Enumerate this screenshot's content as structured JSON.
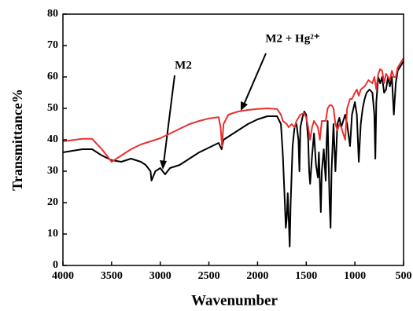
{
  "chart_data": {
    "type": "line",
    "x_label": "Wavenumber",
    "y_label": "Transmittance%",
    "xlim": [
      4000,
      500
    ],
    "ylim": [
      0,
      80
    ],
    "xticks": [
      4000,
      3500,
      3000,
      2500,
      2000,
      1500,
      1000,
      500
    ],
    "yticks": [
      0,
      10,
      20,
      30,
      40,
      50,
      60,
      70,
      80
    ],
    "annotations": [
      {
        "text": "M2"
      },
      {
        "text": "M2 + Hg²⁺"
      }
    ],
    "series": [
      {
        "name": "M2",
        "color": "#000000",
        "x": [
          4000,
          3800,
          3700,
          3600,
          3500,
          3400,
          3300,
          3200,
          3150,
          3100,
          3090,
          3050,
          3000,
          2950,
          2900,
          2800,
          2700,
          2600,
          2500,
          2400,
          2370,
          2350,
          2300,
          2200,
          2100,
          2000,
          1900,
          1800,
          1760,
          1740,
          1720,
          1710,
          1700,
          1690,
          1680,
          1670,
          1660,
          1640,
          1620,
          1600,
          1580,
          1570,
          1560,
          1540,
          1520,
          1500,
          1480,
          1470,
          1460,
          1440,
          1420,
          1400,
          1380,
          1370,
          1350,
          1340,
          1320,
          1300,
          1290,
          1280,
          1260,
          1250,
          1240,
          1220,
          1200,
          1180,
          1160,
          1140,
          1100,
          1080,
          1050,
          1030,
          1000,
          980,
          960,
          940,
          920,
          900,
          880,
          850,
          820,
          800,
          790,
          780,
          760,
          740,
          720,
          700,
          680,
          660,
          640,
          620,
          600,
          580,
          560,
          540,
          520,
          500
        ],
        "values": [
          36,
          37,
          37,
          35,
          33.5,
          33,
          34,
          33,
          32,
          30,
          27,
          30,
          31,
          29,
          31,
          32,
          34,
          36,
          37.5,
          39,
          37,
          40,
          41,
          43,
          45,
          46.5,
          47.5,
          47.5,
          45,
          35,
          20,
          12,
          15,
          23,
          15,
          6,
          20,
          38,
          44,
          45,
          40,
          30,
          44,
          47,
          49,
          48,
          40,
          30,
          26,
          35,
          42,
          32,
          28,
          36,
          17,
          30,
          37,
          27,
          40,
          46,
          20,
          12,
          30,
          45,
          30,
          45,
          47,
          44,
          48,
          45,
          38,
          48,
          52,
          48,
          33,
          45,
          50,
          53,
          55,
          56,
          55,
          48,
          34,
          52,
          60,
          58,
          60,
          55,
          56,
          60,
          57,
          60,
          48,
          58,
          62,
          63,
          64,
          65
        ]
      },
      {
        "name": "M2 + Hg²⁺",
        "color": "#e8302f",
        "x": [
          4000,
          3800,
          3700,
          3600,
          3500,
          3400,
          3300,
          3200,
          3100,
          3000,
          2900,
          2800,
          2700,
          2600,
          2500,
          2400,
          2380,
          2365,
          2350,
          2300,
          2200,
          2100,
          2000,
          1900,
          1800,
          1760,
          1740,
          1700,
          1680,
          1650,
          1620,
          1600,
          1560,
          1520,
          1500,
          1480,
          1460,
          1440,
          1420,
          1380,
          1360,
          1340,
          1300,
          1280,
          1260,
          1240,
          1220,
          1200,
          1180,
          1160,
          1140,
          1120,
          1100,
          1080,
          1050,
          1030,
          1000,
          980,
          960,
          940,
          900,
          860,
          820,
          800,
          780,
          760,
          740,
          720,
          700,
          680,
          660,
          640,
          620,
          600,
          580,
          560,
          540,
          520,
          500
        ],
        "values": [
          39.5,
          40.3,
          40.3,
          37,
          33,
          35,
          37,
          38.5,
          39.5,
          40.5,
          42,
          43.5,
          45,
          46,
          46.8,
          47.2,
          44,
          38,
          45,
          48,
          49,
          49.5,
          49.8,
          50,
          49.8,
          48,
          46,
          45,
          44,
          45,
          44,
          46,
          48,
          48.5,
          47,
          44,
          40,
          44,
          46,
          44,
          40,
          46,
          46,
          50,
          51,
          51,
          50,
          45,
          43,
          45,
          44,
          42,
          40,
          50,
          53,
          53,
          55,
          56,
          54,
          56,
          57,
          59,
          58,
          60,
          56,
          61,
          62.5,
          62,
          58,
          61,
          60,
          59,
          62,
          60,
          60,
          63,
          64,
          65,
          66
        ]
      }
    ]
  }
}
